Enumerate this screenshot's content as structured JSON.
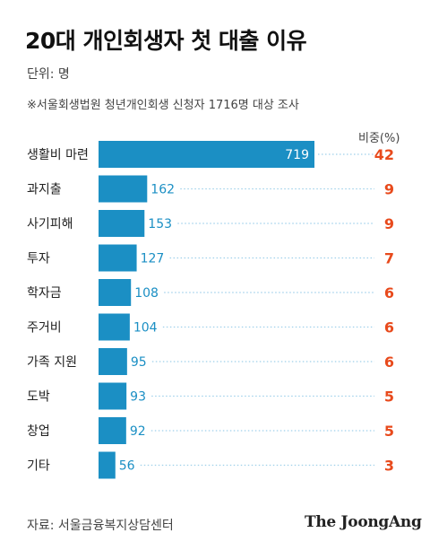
{
  "title": "20대 개인회생자 첫 대출 이유",
  "unit_label": "단위: 명",
  "note": "※서울회생법원 청년개인회생 신청자 1716명 대상 조사",
  "share_header": "비중(%)",
  "source": "자료: 서울금융복지상담센터",
  "logo_text": "The JoongAng",
  "colors": {
    "bar": "#1b8fc4",
    "share": "#e84a1c",
    "dots": "#9fd0ea"
  },
  "chart_data": {
    "type": "bar",
    "orientation": "horizontal",
    "categories": [
      "생활비 마련",
      "과지출",
      "사기피해",
      "투자",
      "학자금",
      "주거비",
      "가족 지원",
      "도박",
      "창업",
      "기타"
    ],
    "values": [
      719,
      162,
      153,
      127,
      108,
      104,
      95,
      93,
      92,
      56
    ],
    "shares": [
      42,
      9,
      9,
      7,
      6,
      6,
      6,
      5,
      5,
      3
    ],
    "title": "20대 개인회생자 첫 대출 이유",
    "xlabel": "",
    "ylabel": "",
    "grid": false
  }
}
